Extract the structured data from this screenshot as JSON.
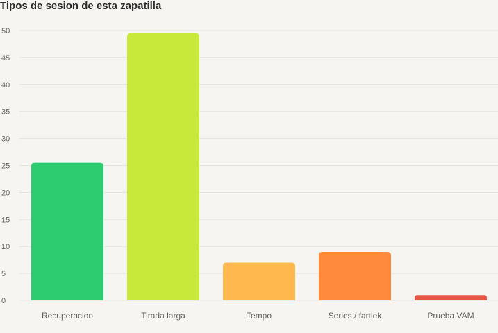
{
  "chart_data": {
    "type": "bar",
    "title": "Tipos de sesion de esta zapatilla",
    "xlabel": "",
    "ylabel": "",
    "categories": [
      "Recuperacion",
      "Tirada larga",
      "Tempo",
      "Series / fartlek",
      "Prueba VAM"
    ],
    "values": [
      25.5,
      49.5,
      7,
      9,
      1
    ],
    "colors": [
      "#2ecc71",
      "#c8e83a",
      "#ffb84d",
      "#ff8a3d",
      "#e85445"
    ],
    "ylim": [
      0,
      50
    ],
    "yticks": [
      0,
      5,
      10,
      15,
      20,
      25,
      30,
      35,
      40,
      45,
      50
    ],
    "grid": true,
    "legend": "none"
  }
}
